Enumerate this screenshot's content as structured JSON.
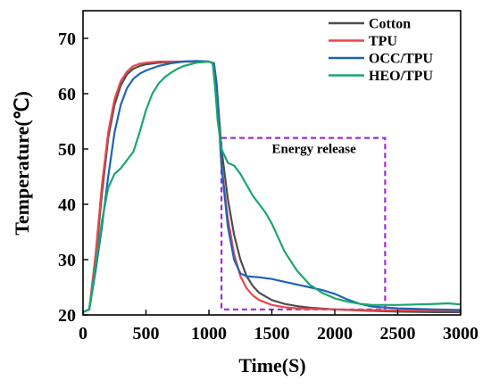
{
  "chart_data": {
    "type": "line",
    "xlabel": "Time(S)",
    "ylabel": "Temperature(℃)",
    "xlim": [
      0,
      3000
    ],
    "ylim": [
      20,
      75
    ],
    "xticks": [
      0,
      500,
      1000,
      1500,
      2000,
      2500,
      3000
    ],
    "yticks": [
      20,
      30,
      40,
      50,
      60,
      70
    ],
    "grid": false,
    "legend_position": "top-right",
    "annotation": {
      "label": "Energy release",
      "x_range": [
        1100,
        2400
      ],
      "y_range": [
        21,
        52
      ],
      "color": "#9a2fd0"
    },
    "series": [
      {
        "name": "Cotton",
        "color": "#4d4d4d",
        "x": [
          0,
          50,
          100,
          150,
          200,
          250,
          300,
          350,
          400,
          450,
          500,
          600,
          700,
          800,
          900,
          1000,
          1040,
          1060,
          1080,
          1100,
          1150,
          1200,
          1250,
          1300,
          1350,
          1400,
          1500,
          1600,
          1700,
          1800,
          2000,
          2200,
          2500,
          2800,
          3000
        ],
        "values": [
          20.5,
          21,
          30,
          42,
          52,
          58,
          61.5,
          63.5,
          64.5,
          65,
          65.3,
          65.6,
          65.7,
          65.8,
          65.8,
          65.8,
          65.5,
          62,
          56,
          50,
          41,
          34.5,
          30,
          27,
          25.2,
          24,
          22.7,
          22,
          21.6,
          21.3,
          21,
          20.8,
          20.6,
          20.5,
          20.5
        ]
      },
      {
        "name": "TPU",
        "color": "#e8474d",
        "x": [
          0,
          50,
          100,
          150,
          200,
          250,
          300,
          350,
          400,
          450,
          500,
          600,
          700,
          800,
          900,
          1000,
          1040,
          1060,
          1080,
          1100,
          1150,
          1200,
          1250,
          1300,
          1350,
          1400,
          1500,
          1600,
          1700,
          1800,
          2000,
          2200,
          2500,
          2800,
          3000
        ],
        "values": [
          20.5,
          21,
          31,
          43.5,
          53,
          59,
          62.3,
          64,
          65,
          65.4,
          65.6,
          65.8,
          65.8,
          65.8,
          65.8,
          65.8,
          65.5,
          61,
          54,
          47,
          37.5,
          31,
          27,
          24.8,
          23.5,
          22.7,
          21.8,
          21.4,
          21.2,
          21.1,
          21,
          20.9,
          20.8,
          20.8,
          20.8
        ]
      },
      {
        "name": "OCC/TPU",
        "color": "#1f63b5",
        "x": [
          0,
          50,
          100,
          150,
          200,
          250,
          300,
          350,
          400,
          450,
          500,
          600,
          700,
          800,
          900,
          1000,
          1040,
          1060,
          1080,
          1100,
          1150,
          1200,
          1250,
          1300,
          1400,
          1500,
          1600,
          1700,
          1800,
          1900,
          2000,
          2100,
          2200,
          2300,
          2500,
          2800,
          3000
        ],
        "values": [
          20.5,
          21,
          28,
          36,
          45,
          53,
          58,
          61,
          62.7,
          63.6,
          64.2,
          65,
          65.5,
          65.8,
          65.9,
          65.8,
          65.5,
          62,
          55,
          47,
          36,
          30,
          27.5,
          27,
          26.8,
          26.5,
          26,
          25.5,
          25,
          24.5,
          23.8,
          22.8,
          22,
          21.5,
          21.2,
          21,
          20.9
        ]
      },
      {
        "name": "HEO/TPU",
        "color": "#1aa86b",
        "x": [
          0,
          50,
          100,
          150,
          200,
          250,
          300,
          350,
          400,
          450,
          500,
          550,
          600,
          650,
          700,
          750,
          800,
          900,
          1000,
          1030,
          1050,
          1070,
          1100,
          1150,
          1200,
          1250,
          1300,
          1350,
          1400,
          1450,
          1500,
          1550,
          1600,
          1700,
          1800,
          1900,
          2000,
          2100,
          2200,
          2300,
          2500,
          2800,
          2900,
          3000
        ],
        "values": [
          20.5,
          21,
          29,
          37,
          43,
          45.5,
          46.5,
          48,
          49.5,
          53,
          57,
          60,
          61.8,
          63,
          63.8,
          64.5,
          65,
          65.6,
          65.8,
          65.5,
          61,
          55,
          50,
          47.5,
          47,
          45.5,
          43.5,
          41.5,
          40,
          38.5,
          36.5,
          34,
          31.5,
          28,
          25.5,
          24,
          23,
          22.4,
          22,
          21.8,
          21.8,
          22,
          22.1,
          21.9
        ]
      }
    ]
  }
}
